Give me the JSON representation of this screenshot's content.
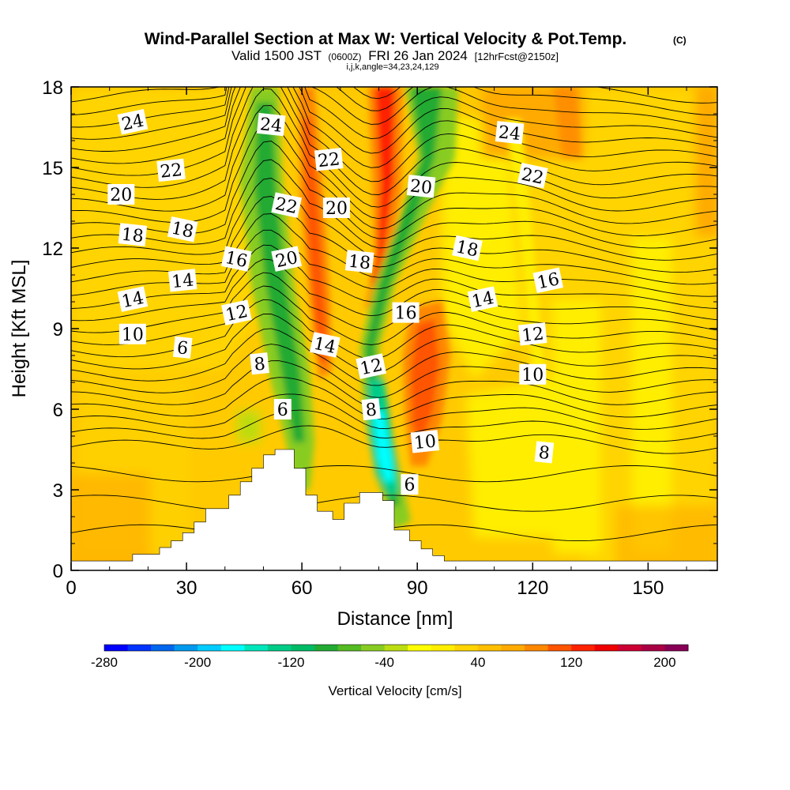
{
  "header": {
    "title": "Wind-Parallel Section at Max W: Vertical Velocity & Pot.Temp.",
    "title_mark": "(C)",
    "valid_prefix": "Valid 1500 JST",
    "valid_utc": "(0600Z)",
    "valid_date": "FRI 26 Jan 2024",
    "forecast": "[12hrFcst@2150z]",
    "indices": "i,j,k,angle=34,23,24,129"
  },
  "chart_data": {
    "type": "heatmap",
    "xlabel": "Distance [nm]",
    "ylabel": "Height [Kft MSL]",
    "xlim": [
      0,
      168
    ],
    "ylim": [
      0,
      18
    ],
    "x_ticks": [
      "0",
      "30",
      "60",
      "90",
      "120",
      "150"
    ],
    "y_ticks": [
      "0",
      "3",
      "6",
      "9",
      "12",
      "15",
      "18"
    ],
    "colorbar": {
      "label": "Vertical Velocity [cm/s]",
      "min": -280,
      "max": 220,
      "step": 20,
      "tick_labels": [
        "-280",
        "-200",
        "-120",
        "-40",
        "40",
        "120",
        "200"
      ],
      "colors": [
        "#0000ff",
        "#0033ff",
        "#0066ee",
        "#0099ee",
        "#00ccff",
        "#00ffff",
        "#00e6bb",
        "#00cc88",
        "#00bb66",
        "#22aa33",
        "#55bb22",
        "#88cc22",
        "#bbdd11",
        "#ffff00",
        "#ffee00",
        "#ffd400",
        "#ffbf00",
        "#ffaa00",
        "#ff8800",
        "#ff5500",
        "#ff2200",
        "#ee0000",
        "#cc0033",
        "#aa0044",
        "#880055"
      ]
    },
    "terrain": [
      [
        0,
        0.35
      ],
      [
        16,
        0.35
      ],
      [
        16,
        0.6
      ],
      [
        23,
        0.6
      ],
      [
        23,
        0.85
      ],
      [
        26,
        0.85
      ],
      [
        26,
        1.1
      ],
      [
        29,
        1.1
      ],
      [
        29,
        1.4
      ],
      [
        32,
        1.4
      ],
      [
        32,
        1.8
      ],
      [
        35,
        1.8
      ],
      [
        35,
        2.3
      ],
      [
        41,
        2.3
      ],
      [
        41,
        2.8
      ],
      [
        44,
        2.8
      ],
      [
        44,
        3.3
      ],
      [
        47,
        3.3
      ],
      [
        47,
        3.8
      ],
      [
        50,
        3.8
      ],
      [
        50,
        4.3
      ],
      [
        53,
        4.3
      ],
      [
        53,
        4.5
      ],
      [
        58,
        4.5
      ],
      [
        58,
        3.8
      ],
      [
        61,
        3.8
      ],
      [
        61,
        2.8
      ],
      [
        64,
        2.8
      ],
      [
        64,
        2.2
      ],
      [
        68,
        2.2
      ],
      [
        68,
        1.9
      ],
      [
        71,
        1.9
      ],
      [
        71,
        2.5
      ],
      [
        75,
        2.5
      ],
      [
        75,
        2.9
      ],
      [
        81,
        2.9
      ],
      [
        81,
        2.6
      ],
      [
        84,
        2.6
      ],
      [
        84,
        1.5
      ],
      [
        88,
        1.5
      ],
      [
        88,
        1.1
      ],
      [
        91,
        1.1
      ],
      [
        91,
        0.8
      ],
      [
        94,
        0.8
      ],
      [
        94,
        0.55
      ],
      [
        97,
        0.55
      ],
      [
        97,
        0.35
      ],
      [
        168,
        0.35
      ]
    ],
    "potential_temperature_labels": [
      {
        "label": "24",
        "x": 16,
        "y": 16.7
      },
      {
        "label": "22",
        "x": 26,
        "y": 14.9
      },
      {
        "label": "20",
        "x": 13,
        "y": 14.0
      },
      {
        "label": "18",
        "x": 16,
        "y": 12.5
      },
      {
        "label": "18",
        "x": 29,
        "y": 12.7
      },
      {
        "label": "14",
        "x": 16,
        "y": 10.1
      },
      {
        "label": "14",
        "x": 29,
        "y": 10.8
      },
      {
        "label": "10",
        "x": 16,
        "y": 8.8
      },
      {
        "label": "6",
        "x": 29,
        "y": 8.3
      },
      {
        "label": "16",
        "x": 43,
        "y": 11.6
      },
      {
        "label": "12",
        "x": 43,
        "y": 9.6
      },
      {
        "label": "8",
        "x": 49,
        "y": 7.7
      },
      {
        "label": "6",
        "x": 55,
        "y": 6.0
      },
      {
        "label": "24",
        "x": 52,
        "y": 16.6
      },
      {
        "label": "22",
        "x": 56,
        "y": 13.6
      },
      {
        "label": "20",
        "x": 56,
        "y": 11.6
      },
      {
        "label": "22",
        "x": 67,
        "y": 15.3
      },
      {
        "label": "20",
        "x": 69,
        "y": 13.5
      },
      {
        "label": "18",
        "x": 75,
        "y": 11.5
      },
      {
        "label": "14",
        "x": 66,
        "y": 8.4
      },
      {
        "label": "12",
        "x": 78,
        "y": 7.6
      },
      {
        "label": "8",
        "x": 78,
        "y": 6.0
      },
      {
        "label": "16",
        "x": 87,
        "y": 9.6
      },
      {
        "label": "20",
        "x": 91,
        "y": 14.3
      },
      {
        "label": "18",
        "x": 103,
        "y": 12.0
      },
      {
        "label": "14",
        "x": 107,
        "y": 10.1
      },
      {
        "label": "10",
        "x": 92,
        "y": 4.8
      },
      {
        "label": "6",
        "x": 88,
        "y": 3.2
      },
      {
        "label": "24",
        "x": 114,
        "y": 16.3
      },
      {
        "label": "22",
        "x": 120,
        "y": 14.7
      },
      {
        "label": "16",
        "x": 124,
        "y": 10.8
      },
      {
        "label": "12",
        "x": 120,
        "y": 8.8
      },
      {
        "label": "10",
        "x": 120,
        "y": 7.3
      },
      {
        "label": "8",
        "x": 123,
        "y": 4.4
      }
    ]
  }
}
